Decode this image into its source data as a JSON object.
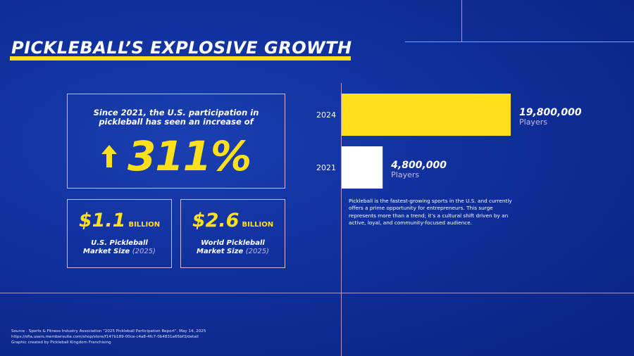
{
  "title": "PICKLEBALL’S EXPLOSIVE GROWTH",
  "growth_card": {
    "headline_line1": "Since 2021, the U.S. participation in",
    "headline_line2": "pickleball has seen an increase of",
    "percent": "311%",
    "icon": "arrow-up-icon"
  },
  "stats": [
    {
      "value": "$1.1",
      "unit": "BILLION",
      "label_line1": "U.S. Pickleball",
      "label_line2": "Market Size",
      "year": "(2025)"
    },
    {
      "value": "$2.6",
      "unit": "BILLION",
      "label_line1": "World Pickleball",
      "label_line2": "Market Size",
      "year": "(2025)"
    }
  ],
  "chart_data": {
    "type": "bar",
    "orientation": "horizontal",
    "categories": [
      "2024",
      "2021"
    ],
    "values": [
      19800000,
      4800000
    ],
    "value_labels": [
      "19,800,000",
      "4,800,000"
    ],
    "unit_label": "Players",
    "colors": [
      "#ffe01a",
      "#ffffff"
    ],
    "xlim": [
      0,
      19800000
    ]
  },
  "description": "Pickleball is the fastest-growing sports in the U.S. and currently offers a prime opportunity for entrepreneurs. This surge represents more than a trend; it’s a cultural shift driven by an active, loyal, and community-focused audience.",
  "source": {
    "line1": "Source - Sports & Fitness Industry Association \"2025 Pickleball Participation Report\", May 14, 2025",
    "line2": "https://sfia.users.membersuite.com/shop/store/f147b189-00ce-c4a8-4fc7-0b4831a65bf3/detail",
    "line3": "Graphic created by Pickleball Kingdom Franchising"
  },
  "colors": {
    "background": "#0f2f9a",
    "accent": "#ffe01a",
    "line": "#c9a6d6"
  }
}
